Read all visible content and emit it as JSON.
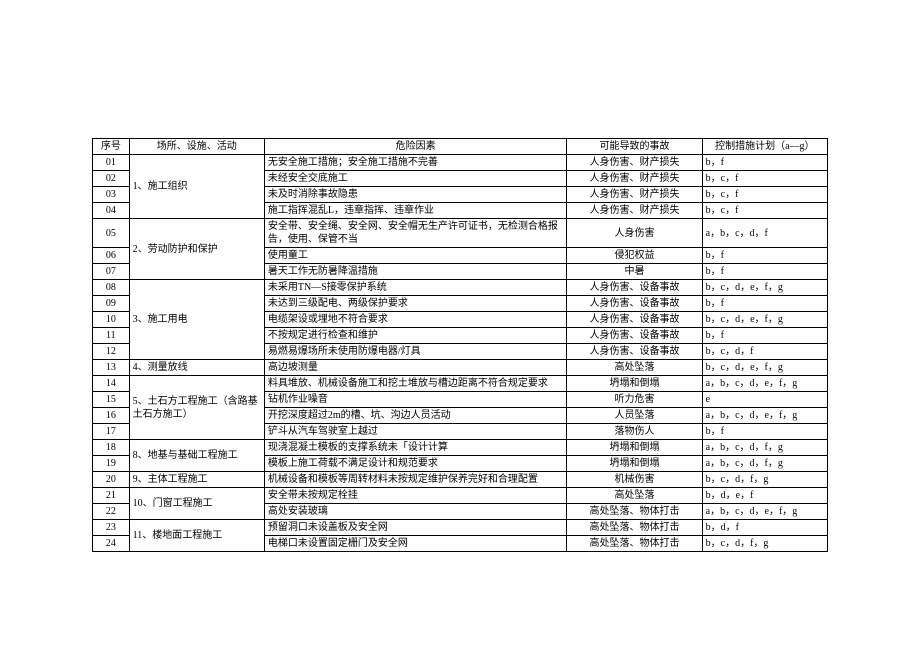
{
  "headers": {
    "seq": "序号",
    "activity": "场所、设施、活动",
    "hazard": "危险因素",
    "accident": "可能导致的事故",
    "control": "控制措施计划（a—g）"
  },
  "groups": [
    {
      "activity": "1、施工组织",
      "rows": [
        {
          "seq": "01",
          "hazard": "无安全施工措施；安全施工措施不完善",
          "accident": "人身伤害、财产损失",
          "control": "b，f"
        },
        {
          "seq": "02",
          "hazard": "未经安全交底施工",
          "accident": "人身伤害、财产损失",
          "control": "b，c，f"
        },
        {
          "seq": "03",
          "hazard": "未及时消除事故隐患",
          "accident": "人身伤害、财产损失",
          "control": "b，c，f"
        },
        {
          "seq": "04",
          "hazard": "施工指挥混乱L，违章指挥、违章作业",
          "accident": "人身伤害、财产损失",
          "control": "b，c，f"
        }
      ]
    },
    {
      "activity": "2、劳动防护和保护",
      "rows": [
        {
          "seq": "05",
          "hazard": "安全带、安全绳、安全网、安全帽无生产许可证书，无检测合格报告，使用、保管不当",
          "accident": "人身伤害",
          "control": "a，b，c，d，f"
        },
        {
          "seq": "06",
          "hazard": "使用童工",
          "accident": "侵犯权益",
          "control": "b，f"
        },
        {
          "seq": "07",
          "hazard": "暑天工作无防暑降温措施",
          "accident": "中暑",
          "control": "b，f"
        }
      ]
    },
    {
      "activity": "3、施工用电",
      "rows": [
        {
          "seq": "08",
          "hazard": "未采用TN—S接零保护系统",
          "accident": "人身伤害、设备事故",
          "control": "b，c，d，e，f，g"
        },
        {
          "seq": "09",
          "hazard": "未达到三级配电、两级保护要求",
          "accident": "人身伤害、设备事故",
          "control": "b，f"
        },
        {
          "seq": "10",
          "hazard": "电缆架设或埋地不符合要求",
          "accident": "人身伤害、设备事故",
          "control": "b，c，d，e，f，g"
        },
        {
          "seq": "11",
          "hazard": "不按规定进行检查和维护",
          "accident": "人身伤害、设备事故",
          "control": "b，f"
        },
        {
          "seq": "12",
          "hazard": "易燃易爆场所未使用防爆电器/灯具",
          "accident": "人身伤害、设备事故",
          "control": "b，c，d，f"
        }
      ]
    },
    {
      "activity": "4、测量放线",
      "rows": [
        {
          "seq": "13",
          "hazard": "高边坡测量",
          "accident": "高处坠落",
          "control": "b，c，d，e，f，g"
        }
      ]
    },
    {
      "activity": "5、土石方工程施工（含路基土石方施工）",
      "rows": [
        {
          "seq": "14",
          "hazard": "料具堆放、机械设备施工和挖土堆放与槽边距离不符合规定要求",
          "accident": "坍塌和倒塌",
          "control": "a，b，c，d，e，f，g"
        },
        {
          "seq": "15",
          "hazard": "钻机作业噪音",
          "accident": "听力危害",
          "control": "e"
        },
        {
          "seq": "16",
          "hazard": "开挖深度超过2m的槽、坑、沟边人员活动",
          "accident": "人员坠落",
          "control": "a，b，c，d，e，f，g"
        },
        {
          "seq": "17",
          "hazard": "铲斗从汽车驾驶室上越过",
          "accident": "落物伤人",
          "control": "b，f"
        }
      ]
    },
    {
      "activity": "8、地基与基础工程施工",
      "rows": [
        {
          "seq": "18",
          "hazard": "现浇混凝土模板的支撑系统未「设计计算",
          "accident": "坍塌和倒塌",
          "control": "a，b，c，d，f，g"
        },
        {
          "seq": "19",
          "hazard": "模板上施工荷载不满足设计和规范要求",
          "accident": "坍塌和倒塌",
          "control": "a，b，c，d，f，g"
        }
      ]
    },
    {
      "activity": "9、主体工程施工",
      "rows": [
        {
          "seq": "20",
          "hazard": "机械设备和模板等周转材料未按规定维护保养完好和合理配置",
          "accident": "机械伤害",
          "control": "b，c，d，f，g"
        }
      ]
    },
    {
      "activity": "10、门窗工程施工",
      "rows": [
        {
          "seq": "21",
          "hazard": "安全带未按规定栓挂",
          "accident": "高处坠落",
          "control": "b，d，e，f"
        },
        {
          "seq": "22",
          "hazard": "高处安装玻璃",
          "accident": "高处坠落、物体打击",
          "control": "a，b，c，d，e，f，g"
        }
      ]
    },
    {
      "activity": "11、楼地面工程施工",
      "rows": [
        {
          "seq": "23",
          "hazard": "预留洞口未设盖板及安全网",
          "accident": "高处坠落、物体打击",
          "control": "b，d，f"
        },
        {
          "seq": "24",
          "hazard": "电梯口未设置固定栅门及安全网",
          "accident": "高处坠落、物体打击",
          "control": "b，c，d，f，g"
        }
      ]
    }
  ]
}
